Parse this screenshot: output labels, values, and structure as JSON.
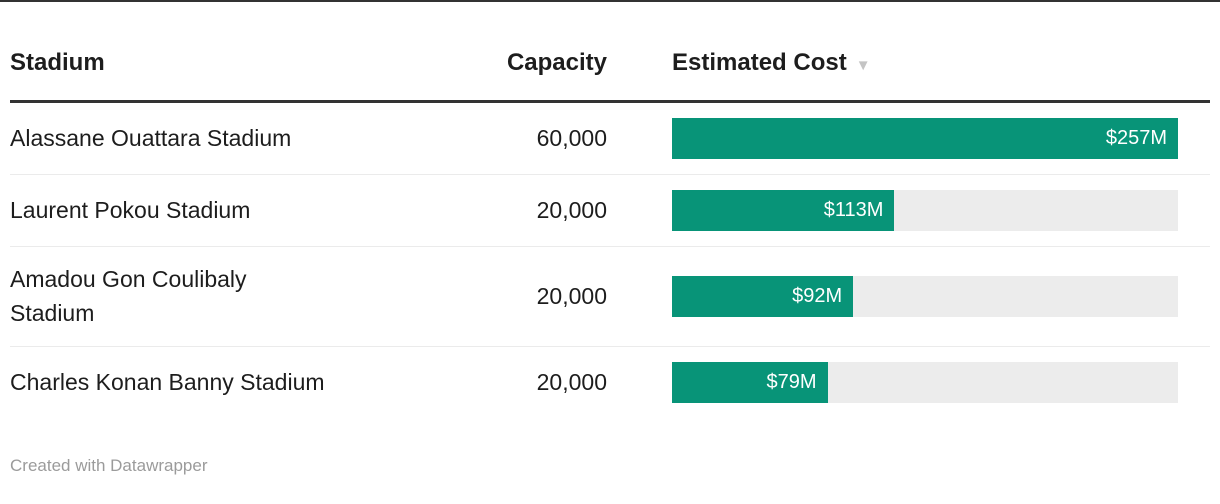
{
  "chart_data": {
    "type": "table",
    "title": "",
    "columns": [
      "Stadium",
      "Capacity",
      "Estimated Cost"
    ],
    "rows": [
      {
        "stadium": "Alassane Ouattara Stadium",
        "capacity": 60000,
        "estimated_cost_musd": 257
      },
      {
        "stadium": "Laurent Pokou Stadium",
        "capacity": 20000,
        "estimated_cost_musd": 113
      },
      {
        "stadium": "Amadou Gon Coulibaly Stadium",
        "capacity": 20000,
        "estimated_cost_musd": 92
      },
      {
        "stadium": "Charles Konan Banny Stadium",
        "capacity": 20000,
        "estimated_cost_musd": 79
      }
    ],
    "bar_column": "Estimated Cost",
    "bar_value_labels": [
      "$257M",
      "$113M",
      "$92M",
      "$79M"
    ],
    "bar_axis_max": 257,
    "sort": {
      "column": "Estimated Cost",
      "direction": "desc"
    },
    "legend_position": "none",
    "grid": false
  },
  "header": {
    "stadium_label": "Stadium",
    "capacity_label": "Capacity",
    "cost_label": "Estimated Cost",
    "sort_icon": "▼"
  },
  "table": {
    "max_cost": 257,
    "rows": [
      {
        "name": "Alassane Ouattara Stadium",
        "capacity": "60,000",
        "cost_display": "$257M",
        "cost_value": 257
      },
      {
        "name": "Laurent Pokou Stadium",
        "capacity": "20,000",
        "cost_display": "$113M",
        "cost_value": 113
      },
      {
        "name": "Amadou Gon Coulibaly Stadium",
        "capacity": "20,000",
        "cost_display": "$92M",
        "cost_value": 92
      },
      {
        "name": "Charles Konan Banny Stadium",
        "capacity": "20,000",
        "cost_display": "$79M",
        "cost_value": 79
      }
    ]
  },
  "footer": {
    "credit": "Created with Datawrapper"
  },
  "colors": {
    "bar": "#089478",
    "bar_track": "#ececec",
    "header_rule": "#333333",
    "row_divider": "#ebebeb",
    "text": "#1d1d1d",
    "bar_label": "#ffffff",
    "credit_text": "#9b9b9b",
    "sort_icon": "#c4c4c4"
  }
}
